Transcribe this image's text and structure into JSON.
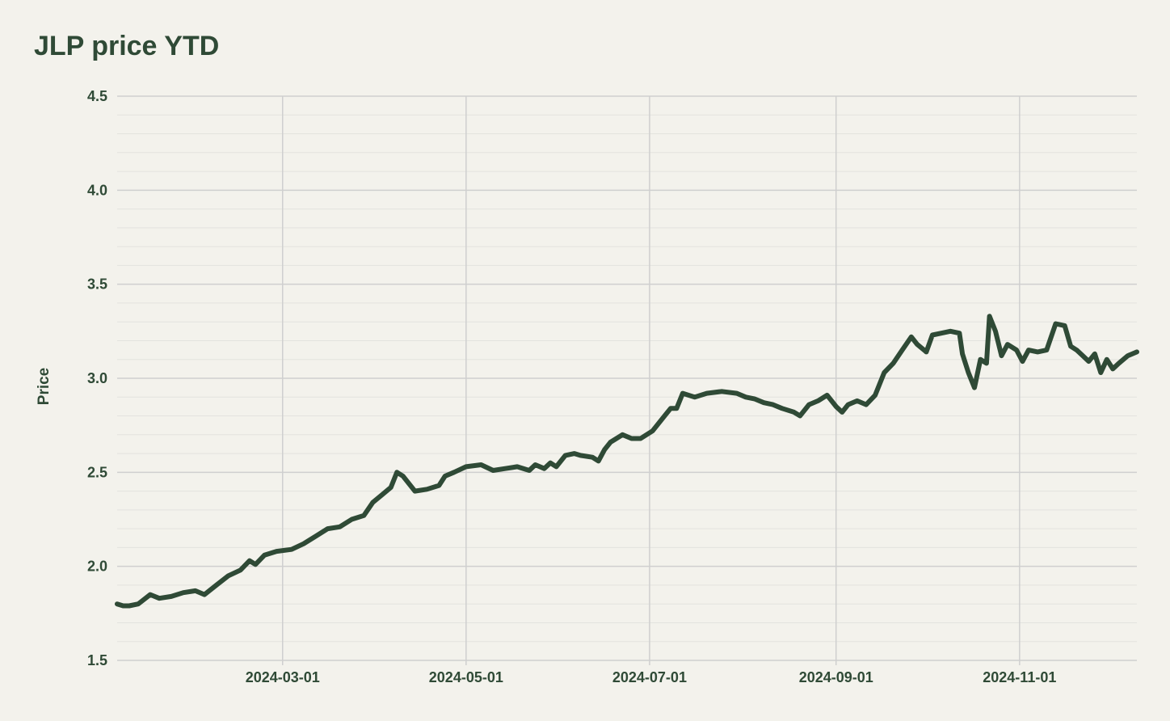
{
  "chart_data": {
    "type": "line",
    "title": "JLP price YTD",
    "xlabel": "",
    "ylabel": "Price",
    "ylim": [
      1.5,
      4.5
    ],
    "xlim": [
      "2024-01-06",
      "2024-12-10"
    ],
    "grid": true,
    "legend": "none",
    "y_ticks": [
      "1.5",
      "2.0",
      "2.5",
      "3.0",
      "3.5",
      "4.0",
      "4.5"
    ],
    "x_ticks": [
      "2024-03-01",
      "2024-05-01",
      "2024-07-01",
      "2024-09-01",
      "2024-11-01"
    ],
    "colors": {
      "line": "#2f4a36",
      "grid_major": "#cfcfcf",
      "grid_minor": "#e3e3de",
      "background": "#f3f2ec"
    },
    "series": [
      {
        "points": [
          [
            "2024-01-06",
            1.8
          ],
          [
            "2024-01-08",
            1.79
          ],
          [
            "2024-01-10",
            1.79
          ],
          [
            "2024-01-13",
            1.8
          ],
          [
            "2024-01-17",
            1.85
          ],
          [
            "2024-01-20",
            1.83
          ],
          [
            "2024-01-24",
            1.84
          ],
          [
            "2024-01-28",
            1.86
          ],
          [
            "2024-02-01",
            1.87
          ],
          [
            "2024-02-04",
            1.85
          ],
          [
            "2024-02-08",
            1.9
          ],
          [
            "2024-02-12",
            1.95
          ],
          [
            "2024-02-16",
            1.98
          ],
          [
            "2024-02-19",
            2.03
          ],
          [
            "2024-02-21",
            2.01
          ],
          [
            "2024-02-24",
            2.06
          ],
          [
            "2024-02-28",
            2.08
          ],
          [
            "2024-03-04",
            2.09
          ],
          [
            "2024-03-08",
            2.12
          ],
          [
            "2024-03-12",
            2.16
          ],
          [
            "2024-03-16",
            2.2
          ],
          [
            "2024-03-20",
            2.21
          ],
          [
            "2024-03-24",
            2.25
          ],
          [
            "2024-03-28",
            2.27
          ],
          [
            "2024-03-31",
            2.34
          ],
          [
            "2024-04-03",
            2.38
          ],
          [
            "2024-04-06",
            2.42
          ],
          [
            "2024-04-08",
            2.5
          ],
          [
            "2024-04-10",
            2.48
          ],
          [
            "2024-04-14",
            2.4
          ],
          [
            "2024-04-18",
            2.41
          ],
          [
            "2024-04-22",
            2.43
          ],
          [
            "2024-04-24",
            2.48
          ],
          [
            "2024-04-27",
            2.5
          ],
          [
            "2024-05-01",
            2.53
          ],
          [
            "2024-05-06",
            2.54
          ],
          [
            "2024-05-10",
            2.51
          ],
          [
            "2024-05-14",
            2.52
          ],
          [
            "2024-05-18",
            2.53
          ],
          [
            "2024-05-22",
            2.51
          ],
          [
            "2024-05-24",
            2.54
          ],
          [
            "2024-05-27",
            2.52
          ],
          [
            "2024-05-29",
            2.55
          ],
          [
            "2024-05-31",
            2.53
          ],
          [
            "2024-06-03",
            2.59
          ],
          [
            "2024-06-06",
            2.6
          ],
          [
            "2024-06-08",
            2.59
          ],
          [
            "2024-06-12",
            2.58
          ],
          [
            "2024-06-14",
            2.56
          ],
          [
            "2024-06-16",
            2.62
          ],
          [
            "2024-06-18",
            2.66
          ],
          [
            "2024-06-22",
            2.7
          ],
          [
            "2024-06-25",
            2.68
          ],
          [
            "2024-06-28",
            2.68
          ],
          [
            "2024-07-02",
            2.72
          ],
          [
            "2024-07-06",
            2.8
          ],
          [
            "2024-07-08",
            2.84
          ],
          [
            "2024-07-10",
            2.84
          ],
          [
            "2024-07-12",
            2.92
          ],
          [
            "2024-07-16",
            2.9
          ],
          [
            "2024-07-20",
            2.92
          ],
          [
            "2024-07-25",
            2.93
          ],
          [
            "2024-07-30",
            2.92
          ],
          [
            "2024-08-02",
            2.9
          ],
          [
            "2024-08-05",
            2.89
          ],
          [
            "2024-08-08",
            2.87
          ],
          [
            "2024-08-11",
            2.86
          ],
          [
            "2024-08-14",
            2.84
          ],
          [
            "2024-08-18",
            2.82
          ],
          [
            "2024-08-20",
            2.8
          ],
          [
            "2024-08-23",
            2.86
          ],
          [
            "2024-08-26",
            2.88
          ],
          [
            "2024-08-29",
            2.91
          ],
          [
            "2024-09-01",
            2.85
          ],
          [
            "2024-09-03",
            2.82
          ],
          [
            "2024-09-05",
            2.86
          ],
          [
            "2024-09-08",
            2.88
          ],
          [
            "2024-09-11",
            2.86
          ],
          [
            "2024-09-14",
            2.91
          ],
          [
            "2024-09-17",
            3.03
          ],
          [
            "2024-09-20",
            3.08
          ],
          [
            "2024-09-23",
            3.15
          ],
          [
            "2024-09-26",
            3.22
          ],
          [
            "2024-09-28",
            3.18
          ],
          [
            "2024-10-01",
            3.14
          ],
          [
            "2024-10-03",
            3.23
          ],
          [
            "2024-10-06",
            3.24
          ],
          [
            "2024-10-09",
            3.25
          ],
          [
            "2024-10-12",
            3.24
          ],
          [
            "2024-10-13",
            3.13
          ],
          [
            "2024-10-15",
            3.03
          ],
          [
            "2024-10-17",
            2.95
          ],
          [
            "2024-10-19",
            3.1
          ],
          [
            "2024-10-21",
            3.08
          ],
          [
            "2024-10-22",
            3.33
          ],
          [
            "2024-10-24",
            3.25
          ],
          [
            "2024-10-26",
            3.12
          ],
          [
            "2024-10-28",
            3.18
          ],
          [
            "2024-10-31",
            3.15
          ],
          [
            "2024-11-02",
            3.09
          ],
          [
            "2024-11-04",
            3.15
          ],
          [
            "2024-11-07",
            3.14
          ],
          [
            "2024-11-10",
            3.15
          ],
          [
            "2024-11-13",
            3.29
          ],
          [
            "2024-11-16",
            3.28
          ],
          [
            "2024-11-18",
            3.17
          ],
          [
            "2024-11-20",
            3.15
          ],
          [
            "2024-11-22",
            3.12
          ],
          [
            "2024-11-24",
            3.09
          ],
          [
            "2024-11-26",
            3.13
          ],
          [
            "2024-11-28",
            3.03
          ],
          [
            "2024-11-30",
            3.1
          ],
          [
            "2024-12-02",
            3.05
          ],
          [
            "2024-12-04",
            3.08
          ],
          [
            "2024-12-07",
            3.12
          ],
          [
            "2024-12-10",
            3.14
          ]
        ]
      }
    ]
  }
}
